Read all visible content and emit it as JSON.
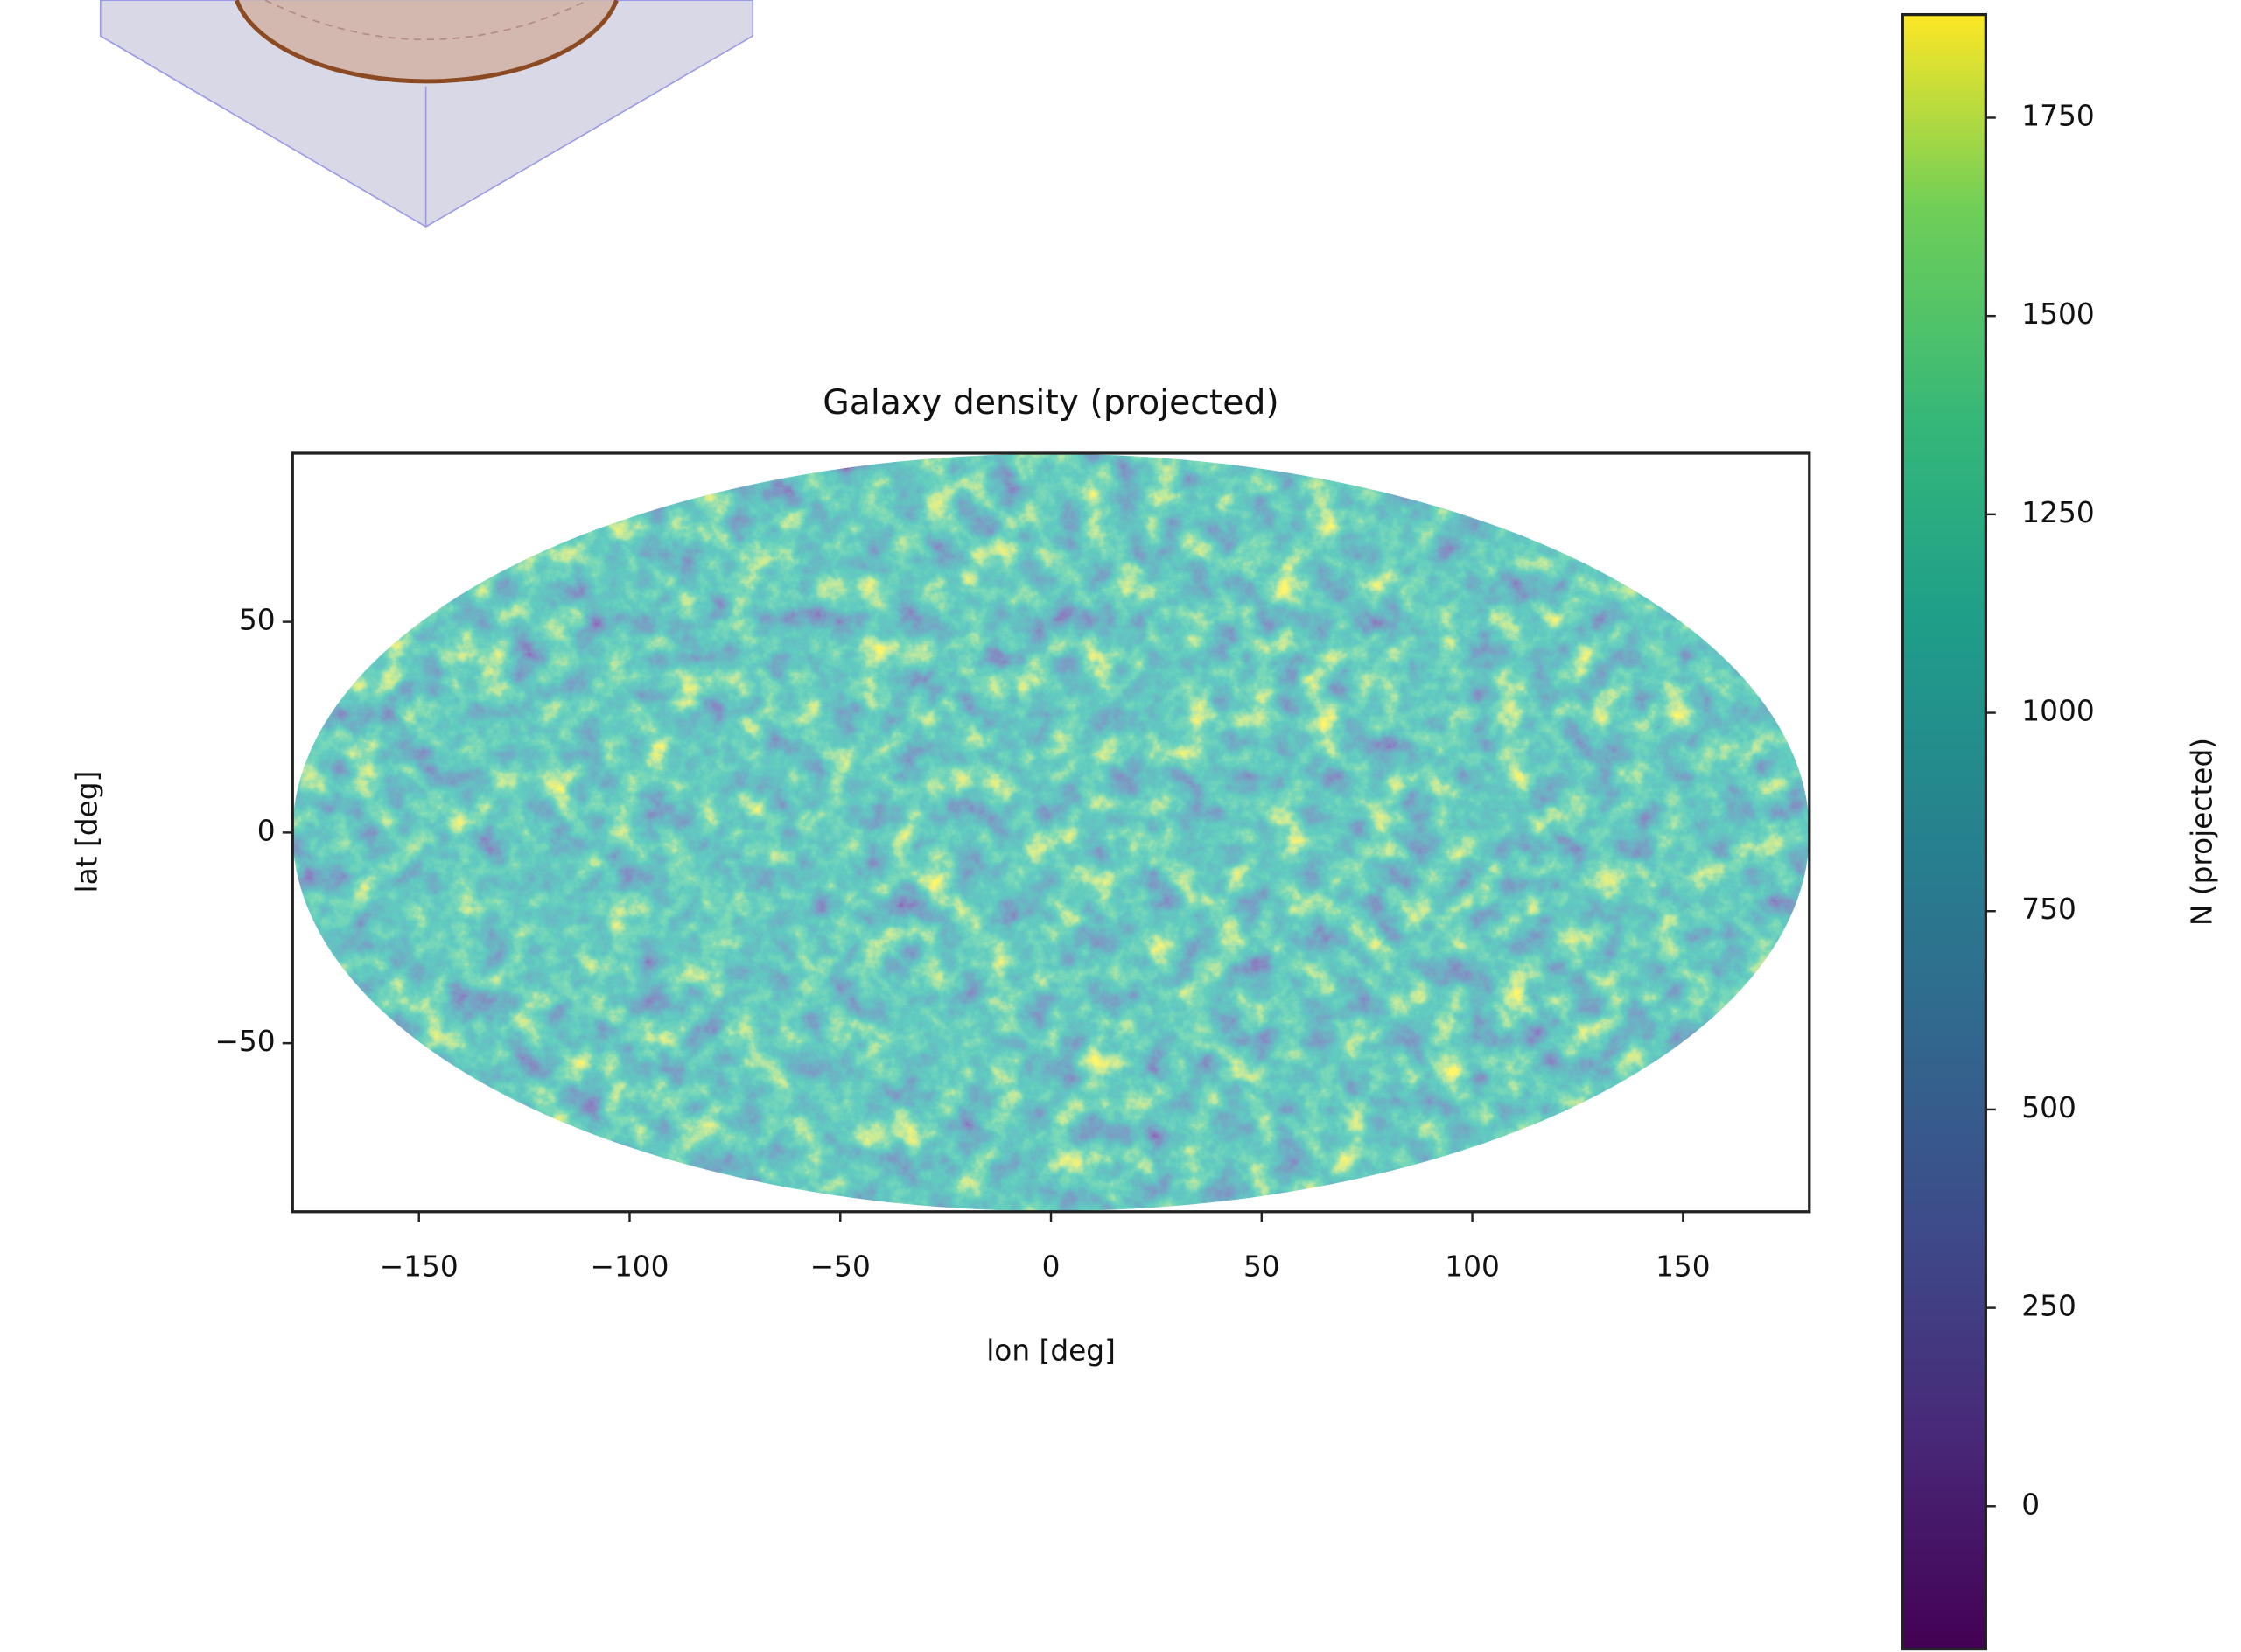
{
  "chart_data": {
    "type": "sky-map",
    "title": "Galaxy density (projected)",
    "xlabel": "lon [deg]",
    "ylabel": "lat [deg]",
    "xlim": [
      -180,
      180
    ],
    "xticks": [
      {
        "value": -150,
        "label": "−150"
      },
      {
        "value": -100,
        "label": "−100"
      },
      {
        "value": -50,
        "label": "−50"
      },
      0,
      50,
      100,
      150
    ],
    "ylim": [
      -90,
      90
    ],
    "yticks": [
      {
        "value": -50,
        "label": "−50"
      },
      0,
      50
    ],
    "colorbar": {
      "label": "N (projected)",
      "lim": [
        -180,
        1880
      ],
      "ticks": [
        0,
        250,
        500,
        750,
        1000,
        1250,
        1500,
        1750
      ]
    }
  }
}
